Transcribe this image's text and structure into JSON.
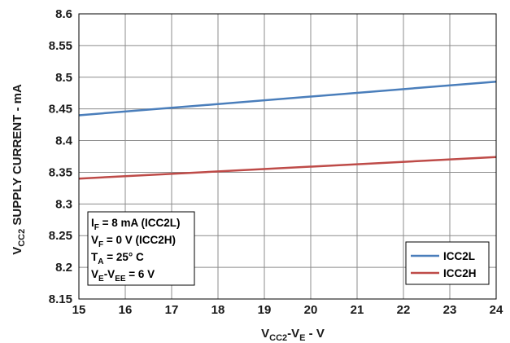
{
  "chart_data": {
    "type": "line",
    "xlabel": {
      "main": "V",
      "sub1": "CC2",
      "mid": "-V",
      "sub2": "E",
      "tail": " - V"
    },
    "ylabel": {
      "main": "V",
      "sub": "CC2",
      "tail": " SUPPLY CURRENT - mA"
    },
    "xlim": [
      15,
      24
    ],
    "ylim": [
      8.15,
      8.6
    ],
    "xticks": [
      "15",
      "16",
      "17",
      "18",
      "19",
      "20",
      "21",
      "22",
      "23",
      "24"
    ],
    "yticks": [
      "8.15",
      "8.2",
      "8.25",
      "8.3",
      "8.35",
      "8.4",
      "8.45",
      "8.5",
      "8.55",
      "8.6"
    ],
    "grid": true,
    "legend_position": "bottom-right",
    "series": [
      {
        "name": "ICC2L",
        "color": "#4a7ebb",
        "x": [
          15,
          24
        ],
        "y": [
          8.44,
          8.493
        ]
      },
      {
        "name": "ICC2H",
        "color": "#be4b48",
        "x": [
          15,
          24
        ],
        "y": [
          8.34,
          8.374
        ]
      }
    ],
    "annotation": {
      "lines": [
        {
          "main": "I",
          "sub": "F",
          "tail": " = 8 mA (ICC2L)"
        },
        {
          "main": "V",
          "sub": "F",
          "tail": " = 0 V (ICC2H)"
        },
        {
          "main": "T",
          "sub": "A",
          "tail": " = 25° C"
        },
        {
          "main": "V",
          "sub": "E",
          "mid": "-V",
          "sub2": "EE",
          "tail": " = 6 V"
        }
      ]
    }
  }
}
